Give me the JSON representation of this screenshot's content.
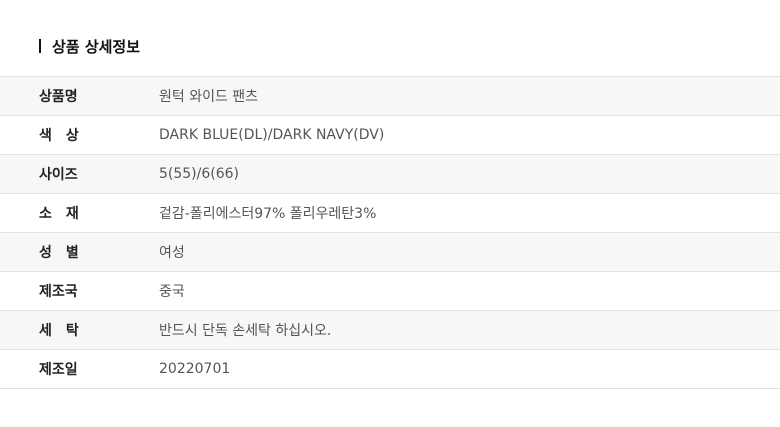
{
  "title": "상품 상세정보",
  "rows": [
    {
      "label": "상품명",
      "value": "원턱 와이드 팬츠"
    },
    {
      "label": "색　상",
      "value": "DARK BLUE(DL)/DARK NAVY(DV)"
    },
    {
      "label": "사이즈",
      "value": "5(55)/6(66)"
    },
    {
      "label": "소　재",
      "value": "겉감-폴리에스터97% 폴리우레탄3%"
    },
    {
      "label": "성　별",
      "value": "여성"
    },
    {
      "label": "제조국",
      "value": "중국"
    },
    {
      "label": "세　탁",
      "value": "반드시 단독 손세탁 하십시오."
    },
    {
      "label": "제조일",
      "value": "20220701"
    }
  ]
}
